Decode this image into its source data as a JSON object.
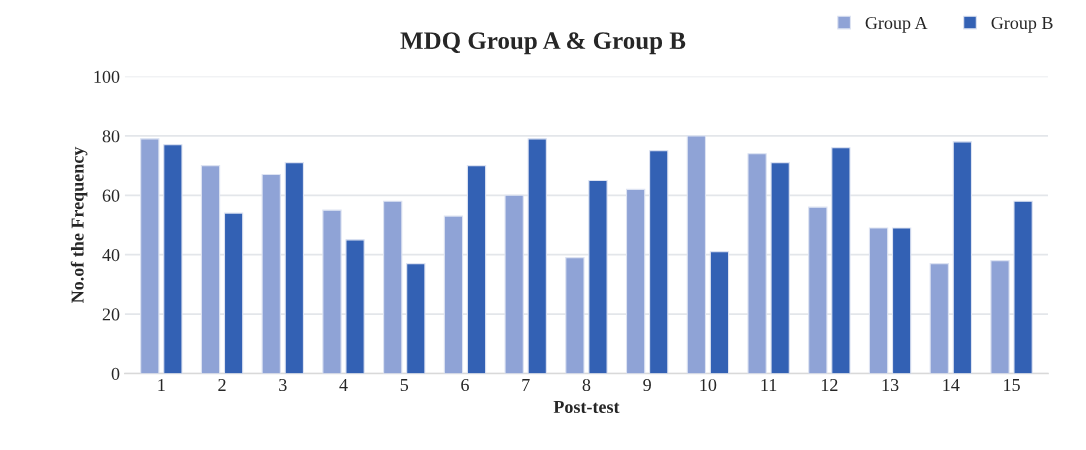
{
  "chart_data": {
    "type": "bar",
    "title": "MDQ Group A & Group B",
    "xlabel": "Post-test",
    "ylabel": "No.of the Frequency",
    "categories": [
      "1",
      "2",
      "3",
      "4",
      "5",
      "6",
      "7",
      "8",
      "9",
      "10",
      "11",
      "12",
      "13",
      "14",
      "15"
    ],
    "series": [
      {
        "name": "Group A",
        "color": "#8fa3d6",
        "values": [
          79,
          70,
          67,
          55,
          58,
          53,
          60,
          39,
          62,
          80,
          74,
          56,
          49,
          37,
          38
        ]
      },
      {
        "name": "Group B",
        "color": "#3361b4",
        "values": [
          77,
          54,
          71,
          45,
          37,
          70,
          79,
          65,
          75,
          41,
          71,
          76,
          49,
          78,
          58
        ]
      }
    ],
    "ylim": [
      0,
      100
    ],
    "yticks": [
      0,
      20,
      40,
      60,
      80,
      100
    ],
    "grid": "y",
    "legend": "top right"
  }
}
